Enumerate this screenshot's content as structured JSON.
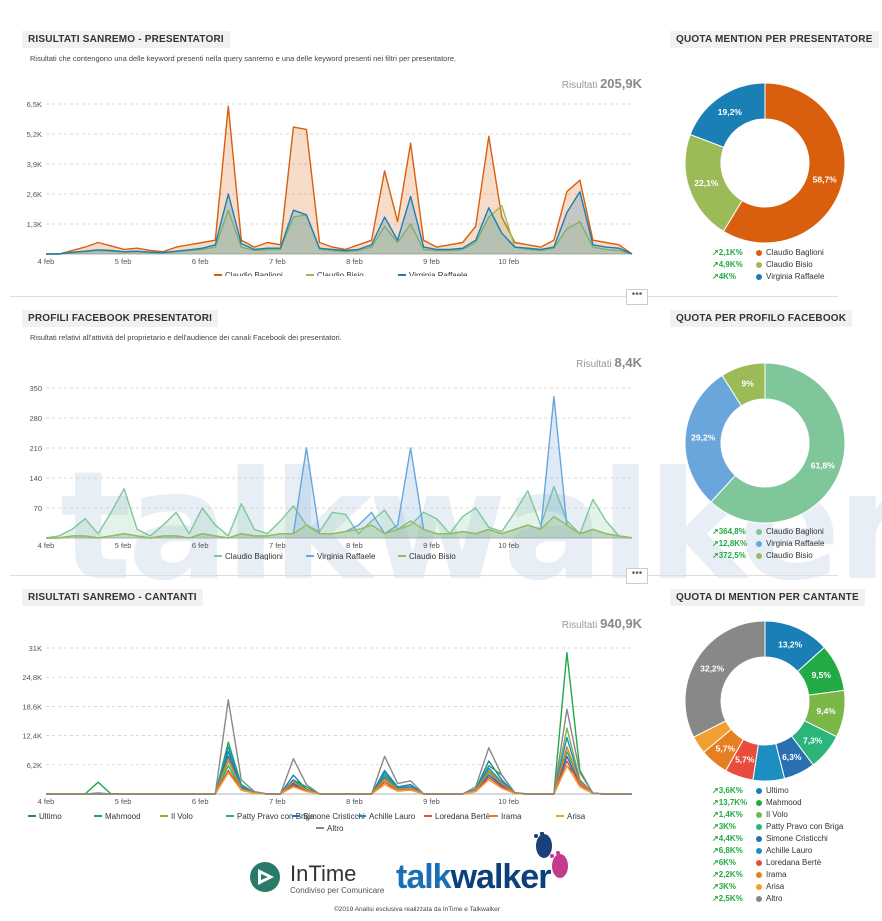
{
  "sections": [
    {
      "title": "RISULTATI SANREMO - PRESENTATORI",
      "subtitle": "Risultati che contengono una delle keyword presenti nella query sanremo e una delle keyword presenti nei filtri per presentatore.",
      "results_label": "Risultati",
      "results_value": "205,9K",
      "donut_title": "QUOTA MENTION PER PRESENTATORE"
    },
    {
      "title": "PROFILI FACEBOOK PRESENTATORI",
      "subtitle": "Risultati relativi all'attività del proprietario e dell'audience dei canali Facebook dei presentatori.",
      "results_label": "Risultati",
      "results_value": "8,4K",
      "donut_title": "QUOTA PER PROFILO FACEBOOK"
    },
    {
      "title": "RISULTATI SANREMO - CANTANTI",
      "subtitle": "",
      "results_label": "Risultati",
      "results_value": "940,9K",
      "donut_title": "QUOTA DI MENTION PER CANTANTE"
    }
  ],
  "more_button": "•••",
  "chart_data": [
    {
      "type": "area",
      "title": "RISULTATI SANREMO - PRESENTATORI",
      "x_ticks": [
        "4 feb",
        "5 feb",
        "6 feb",
        "7 feb",
        "8 feb",
        "9 feb",
        "10 feb"
      ],
      "y_ticks": [
        "1,3K",
        "2,6K",
        "3,9K",
        "5,2K",
        "6,5K"
      ],
      "ylim": [
        0,
        6500
      ],
      "series": [
        {
          "name": "Claudio Baglioni",
          "color": "#d95f0e",
          "values": [
            0,
            0,
            150,
            300,
            500,
            350,
            200,
            250,
            150,
            100,
            300,
            400,
            500,
            600,
            6400,
            600,
            300,
            500,
            400,
            5500,
            5400,
            500,
            300,
            200,
            400,
            600,
            3600,
            1400,
            4800,
            600,
            300,
            400,
            500,
            1200,
            5100,
            1600,
            500,
            400,
            300,
            600,
            2700,
            3200,
            600,
            500,
            400,
            0
          ]
        },
        {
          "name": "Claudio Bisio",
          "color": "#9bbb59",
          "values": [
            0,
            0,
            50,
            100,
            150,
            120,
            80,
            100,
            60,
            50,
            100,
            150,
            200,
            300,
            1900,
            300,
            150,
            200,
            200,
            1600,
            1700,
            200,
            150,
            100,
            150,
            300,
            1200,
            500,
            1300,
            200,
            150,
            150,
            200,
            500,
            1600,
            2100,
            300,
            200,
            150,
            250,
            1100,
            1400,
            300,
            200,
            150,
            0
          ]
        },
        {
          "name": "Virginia Raffaele",
          "color": "#1a7fb5",
          "values": [
            0,
            0,
            80,
            120,
            180,
            150,
            100,
            120,
            80,
            60,
            120,
            180,
            250,
            400,
            2600,
            450,
            200,
            250,
            250,
            1900,
            1700,
            250,
            200,
            150,
            200,
            400,
            1600,
            600,
            2500,
            300,
            200,
            200,
            250,
            600,
            2000,
            900,
            300,
            250,
            200,
            300,
            1800,
            2700,
            400,
            300,
            250,
            0
          ]
        }
      ]
    },
    {
      "type": "area",
      "title": "PROFILI FACEBOOK PRESENTATORI",
      "x_ticks": [
        "4 feb",
        "5 feb",
        "6 feb",
        "7 feb",
        "8 feb",
        "9 feb",
        "10 feb"
      ],
      "y_ticks": [
        "70",
        "140",
        "210",
        "280",
        "350"
      ],
      "ylim": [
        0,
        350
      ],
      "series": [
        {
          "name": "Claudio Baglioni",
          "color": "#7fc79a",
          "values": [
            0,
            5,
            20,
            45,
            10,
            60,
            115,
            20,
            5,
            30,
            60,
            10,
            70,
            30,
            5,
            80,
            20,
            10,
            40,
            75,
            30,
            15,
            60,
            55,
            10,
            40,
            65,
            20,
            30,
            60,
            45,
            10,
            50,
            70,
            25,
            15,
            60,
            110,
            30,
            120,
            40,
            10,
            90,
            40,
            5,
            0
          ]
        },
        {
          "name": "Virginia Raffaele",
          "color": "#6aa6dc",
          "values": [
            0,
            0,
            5,
            5,
            0,
            5,
            10,
            5,
            0,
            5,
            5,
            0,
            10,
            5,
            0,
            10,
            5,
            5,
            10,
            10,
            210,
            10,
            10,
            15,
            30,
            60,
            10,
            30,
            210,
            20,
            10,
            10,
            15,
            10,
            20,
            10,
            20,
            30,
            20,
            330,
            30,
            10,
            20,
            10,
            5,
            0
          ]
        },
        {
          "name": "Claudio Bisio",
          "color": "#9bbb59",
          "values": [
            0,
            0,
            5,
            5,
            0,
            5,
            10,
            5,
            0,
            5,
            5,
            0,
            10,
            5,
            0,
            10,
            5,
            5,
            10,
            10,
            30,
            10,
            10,
            15,
            20,
            30,
            10,
            20,
            40,
            20,
            10,
            10,
            15,
            10,
            20,
            10,
            20,
            30,
            20,
            50,
            30,
            10,
            20,
            10,
            5,
            0
          ]
        }
      ]
    },
    {
      "type": "line",
      "title": "RISULTATI SANREMO - CANTANTI",
      "x_ticks": [
        "4 feb",
        "5 feb",
        "6 feb",
        "7 feb",
        "8 feb",
        "9 feb",
        "10 feb"
      ],
      "y_ticks": [
        "6,2K",
        "12,4K",
        "18,6K",
        "24,8K",
        "31K"
      ],
      "ylim": [
        0,
        31000
      ],
      "series": [
        {
          "name": "Ultimo",
          "color": "#1a7fb5",
          "values": [
            0,
            0,
            0,
            0,
            200,
            0,
            0,
            0,
            0,
            0,
            0,
            0,
            0,
            0,
            9000,
            1500,
            300,
            0,
            0,
            4000,
            1000,
            0,
            0,
            0,
            0,
            0,
            5000,
            1500,
            2000,
            0,
            0,
            0,
            0,
            1000,
            7000,
            3000,
            200,
            0,
            0,
            0,
            6000,
            3000,
            100,
            0,
            0,
            0
          ]
        },
        {
          "name": "Mahmood",
          "color": "#22aa44",
          "values": [
            0,
            0,
            0,
            0,
            2500,
            0,
            0,
            0,
            0,
            0,
            0,
            0,
            0,
            0,
            11000,
            2000,
            300,
            0,
            0,
            3000,
            1500,
            0,
            0,
            0,
            0,
            0,
            4000,
            1200,
            1500,
            0,
            0,
            0,
            0,
            900,
            6000,
            4000,
            200,
            0,
            0,
            0,
            30000,
            5000,
            100,
            0,
            0,
            0
          ]
        },
        {
          "name": "Il Volo",
          "color": "#7ab648",
          "values": [
            0,
            0,
            0,
            0,
            0,
            0,
            0,
            0,
            0,
            0,
            0,
            0,
            0,
            0,
            7000,
            1000,
            200,
            0,
            0,
            2500,
            800,
            0,
            0,
            0,
            0,
            0,
            3000,
            900,
            1200,
            0,
            0,
            0,
            0,
            700,
            5000,
            2500,
            100,
            0,
            0,
            0,
            14000,
            3000,
            100,
            0,
            0,
            0
          ]
        },
        {
          "name": "Patty Pravo con Briga",
          "color": "#2bb57a",
          "values": [
            0,
            0,
            0,
            0,
            0,
            0,
            0,
            0,
            0,
            0,
            0,
            0,
            0,
            0,
            6000,
            800,
            200,
            0,
            0,
            2000,
            700,
            0,
            0,
            0,
            0,
            0,
            2500,
            700,
            1000,
            0,
            0,
            0,
            0,
            600,
            4500,
            2000,
            100,
            0,
            0,
            0,
            9000,
            2500,
            100,
            0,
            0,
            0
          ]
        },
        {
          "name": "Simone Cristicchi",
          "color": "#2a6fb0",
          "values": [
            0,
            0,
            0,
            0,
            0,
            0,
            0,
            0,
            0,
            0,
            0,
            0,
            0,
            0,
            8000,
            1200,
            200,
            0,
            0,
            2200,
            700,
            0,
            0,
            0,
            0,
            0,
            3500,
            800,
            1100,
            0,
            0,
            0,
            0,
            600,
            4000,
            1800,
            100,
            0,
            0,
            0,
            8000,
            2000,
            100,
            0,
            0,
            0
          ]
        },
        {
          "name": "Achille Lauro",
          "color": "#1c8fc0",
          "values": [
            0,
            0,
            0,
            0,
            0,
            0,
            0,
            0,
            0,
            0,
            0,
            0,
            0,
            0,
            10000,
            1800,
            300,
            0,
            0,
            3000,
            900,
            0,
            0,
            0,
            0,
            0,
            4500,
            1300,
            1600,
            0,
            0,
            0,
            0,
            900,
            5500,
            2500,
            150,
            0,
            0,
            0,
            12000,
            2800,
            100,
            0,
            0,
            0
          ]
        },
        {
          "name": "Loredana Bertè",
          "color": "#e84c3d",
          "values": [
            0,
            0,
            0,
            0,
            0,
            0,
            0,
            0,
            0,
            0,
            0,
            0,
            0,
            0,
            5000,
            900,
            200,
            0,
            0,
            1800,
            600,
            0,
            0,
            0,
            0,
            0,
            2500,
            700,
            900,
            0,
            0,
            0,
            0,
            500,
            3500,
            1500,
            100,
            0,
            0,
            0,
            7000,
            2000,
            100,
            0,
            0,
            0
          ]
        },
        {
          "name": "Irama",
          "color": "#e67e22",
          "values": [
            0,
            0,
            0,
            0,
            0,
            0,
            0,
            0,
            0,
            0,
            0,
            0,
            0,
            0,
            7500,
            1100,
            200,
            0,
            0,
            2600,
            800,
            0,
            0,
            0,
            0,
            0,
            3200,
            900,
            1200,
            0,
            0,
            0,
            0,
            700,
            4800,
            2200,
            100,
            0,
            0,
            0,
            10000,
            2500,
            100,
            0,
            0,
            0
          ]
        },
        {
          "name": "Arisa",
          "color": "#f0a030",
          "values": [
            0,
            0,
            0,
            0,
            0,
            0,
            0,
            0,
            0,
            0,
            0,
            0,
            0,
            0,
            4500,
            800,
            150,
            0,
            0,
            1500,
            500,
            0,
            0,
            0,
            0,
            0,
            2000,
            600,
            800,
            0,
            0,
            0,
            0,
            500,
            3000,
            1200,
            100,
            0,
            0,
            0,
            6000,
            1500,
            100,
            0,
            0,
            0
          ]
        },
        {
          "name": "Altro",
          "color": "#888888",
          "values": [
            0,
            0,
            0,
            0,
            0,
            0,
            0,
            0,
            0,
            0,
            0,
            0,
            0,
            0,
            20000,
            3000,
            500,
            0,
            0,
            7500,
            2000,
            0,
            0,
            0,
            0,
            0,
            8000,
            2200,
            2800,
            0,
            0,
            0,
            0,
            1500,
            9800,
            4000,
            300,
            0,
            0,
            0,
            18000,
            4500,
            200,
            0,
            0,
            0
          ]
        }
      ]
    },
    {
      "type": "pie",
      "title": "QUOTA MENTION PER PRESENTATORE",
      "slices": [
        {
          "name": "Claudio Baglioni",
          "value": 58.7,
          "label": "58,7%",
          "color": "#d95f0e",
          "growth": "2,1K%"
        },
        {
          "name": "Claudio Bisio",
          "value": 22.1,
          "label": "22,1%",
          "color": "#9bbb59",
          "growth": "4,9K%"
        },
        {
          "name": "Virginia Raffaele",
          "value": 19.2,
          "label": "19,2%",
          "color": "#1a7fb5",
          "growth": "4K%"
        }
      ]
    },
    {
      "type": "pie",
      "title": "QUOTA PER PROFILO FACEBOOK",
      "slices": [
        {
          "name": "Claudio Baglioni",
          "value": 61.8,
          "label": "61,8%",
          "color": "#7fc79a",
          "growth": "364,8%"
        },
        {
          "name": "Virginia Raffaele",
          "value": 29.2,
          "label": "29,2%",
          "color": "#6aa6dc",
          "growth": "12,8K%"
        },
        {
          "name": "Claudio Bisio",
          "value": 9,
          "label": "9%",
          "color": "#9bbb59",
          "growth": "372,5%"
        }
      ]
    },
    {
      "type": "pie",
      "title": "QUOTA DI MENTION PER CANTANTE",
      "slices": [
        {
          "name": "Ultimo",
          "value": 13.2,
          "label": "13,2%",
          "color": "#1a7fb5",
          "growth": "3,6K%"
        },
        {
          "name": "Mahmood",
          "value": 9.5,
          "label": "9,5%",
          "color": "#22aa44",
          "growth": "13,7K%"
        },
        {
          "name": "Il Volo",
          "value": 9.4,
          "label": "9,4%",
          "color": "#7ab648",
          "growth": "1,4K%"
        },
        {
          "name": "Patty Pravo con Briga",
          "value": 7.3,
          "label": "7,3%",
          "color": "#2bb57a",
          "growth": "3K%"
        },
        {
          "name": "Simone Cristicchi",
          "value": 6.3,
          "label": "6,3%",
          "color": "#2a6fb0",
          "growth": "4,4K%"
        },
        {
          "name": "Achille Lauro",
          "value": 6.3,
          "label": "",
          "color": "#1c8fc0",
          "growth": "6,8K%"
        },
        {
          "name": "Loredana Bertè",
          "value": 5.7,
          "label": "5,7%",
          "color": "#e84c3d",
          "growth": "6K%"
        },
        {
          "name": "Irama",
          "value": 5.7,
          "label": "5,7%",
          "color": "#e67e22",
          "growth": "2,2K%"
        },
        {
          "name": "Arisa",
          "value": 3.6,
          "label": "",
          "color": "#f0a030",
          "growth": "3K%"
        },
        {
          "name": "Altro",
          "value": 32.2,
          "label": "32,2%",
          "color": "#888888",
          "growth": "2,5K%"
        }
      ]
    }
  ],
  "footer": {
    "brand1": "InTime",
    "brand1_sub": "Condiviso per Comunicare",
    "brand2a": "talk",
    "brand2b": "walker",
    "copyright": "©2019 Analisi esclusiva realizzata da InTime e Talkwalker"
  }
}
